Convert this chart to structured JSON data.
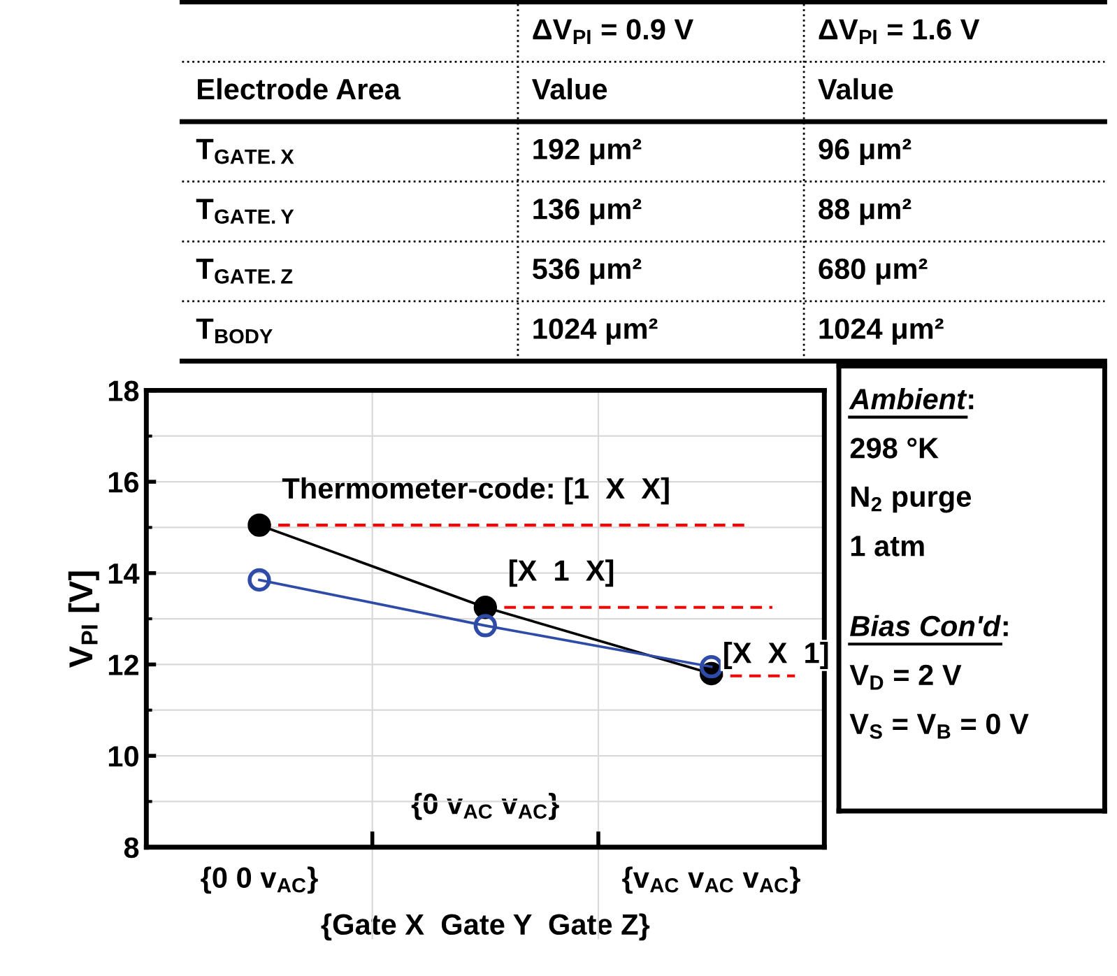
{
  "chart_data": [
    {
      "type": "other",
      "annotations": [
        "ΔV$_{PI}$ = 0.9 V",
        "ΔV$_{PI}$ = 1.6 V",
        "Electrode Area",
        "Value",
        "Value",
        "T$_{GATE.X}$",
        "192 μm²",
        "96 μm²",
        "T$_{GATE.Y}$",
        "136 μm²",
        "88 μm²",
        "T$_{GATE.Z}$",
        "536 μm²",
        "680 μm²",
        "T$_{BODY}$",
        "1024 μm²",
        "1024 μm²"
      ]
    },
    {
      "type": "line",
      "categories": [
        "{0 0 v$_{AC}$}",
        "{0 v$_{AC}$ v$_{AC}$}",
        "{v$_{AC}$ v$_{AC}$ v$_{AC}$}"
      ],
      "xlabel": "{Gate X  Gate Y  Gate Z}",
      "ylabel": "V$_{PI}$ [V]",
      "ylim": [
        8,
        18
      ],
      "yticks": [
        8,
        10,
        12,
        14,
        16,
        18
      ],
      "grid": true,
      "marker": "circle",
      "line_style": "solid",
      "series": [
        {
          "color": "#000000",
          "values": [
            15.05,
            13.25,
            11.8
          ]
        },
        {
          "color": "#2e4ba8",
          "values": [
            13.85,
            12.85,
            11.95
          ]
        }
      ],
      "ref_lines": [
        {
          "axis": "y",
          "value": 15.05,
          "label": "Thermometer-code: [1  X  X]",
          "color": "#ff0000",
          "line_style": "dashed"
        },
        {
          "axis": "y",
          "value": 13.25,
          "label": "[X  1  X]",
          "color": "#ff0000",
          "line_style": "dashed"
        },
        {
          "axis": "y",
          "value": 11.75,
          "label": "[X  X  1]",
          "color": "#ff0000",
          "line_style": "dashed"
        }
      ]
    },
    {
      "type": "other",
      "annotations": [
        "Ambient",
        ":",
        "298 °K",
        "N$_{2}$ purge",
        "1 atm",
        "Bias Con'd",
        ":",
        "V$_{D}$ = 2 V",
        "V$_{S}$ = V$_{B}$ = 0 V"
      ]
    }
  ]
}
